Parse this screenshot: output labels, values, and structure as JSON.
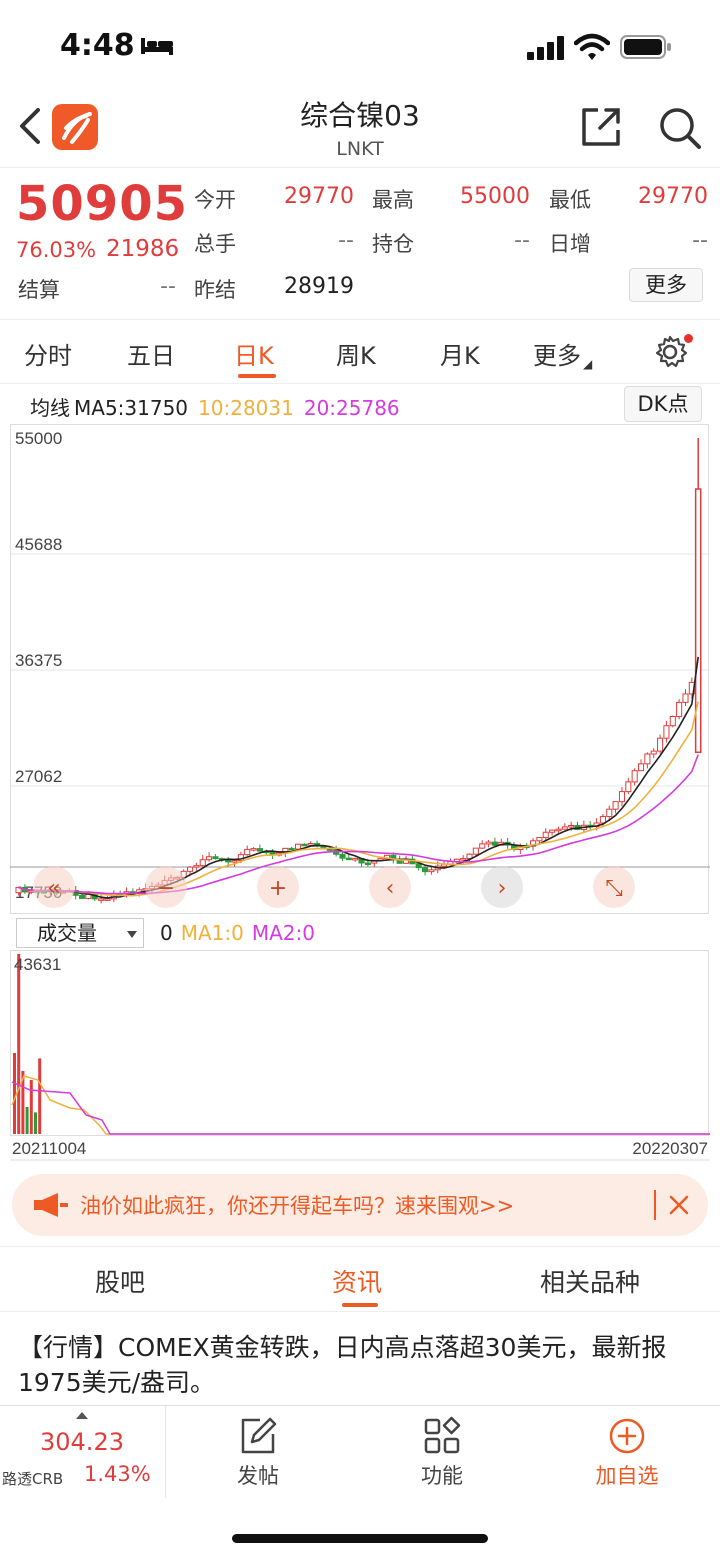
{
  "status_bar": {
    "time": "4:48"
  },
  "header": {
    "title": "综合镍03",
    "subtitle": "LNKT"
  },
  "quote": {
    "last_price": "50905",
    "change_pct": "76.03%",
    "change": "21986",
    "fields": {
      "open_label": "今开",
      "open": "29770",
      "high_label": "最高",
      "high": "55000",
      "low_label": "最低",
      "low": "29770",
      "volume_label": "总手",
      "volume": "--",
      "oi_label": "持仓",
      "oi": "--",
      "oi_change_label": "日增",
      "oi_change": "--",
      "settle_label": "结算",
      "settle": "--",
      "prev_settle_label": "昨结",
      "prev_settle": "28919"
    },
    "more_label": "更多"
  },
  "period_tabs": [
    "分时",
    "五日",
    "日K",
    "周K",
    "月K",
    "更多"
  ],
  "active_period": "日K",
  "ma_legend": {
    "label": "均线",
    "ma5": "MA5:31750",
    "ma10": "10:28031",
    "ma20": "20:25786",
    "dk_label": "DK点"
  },
  "colors": {
    "up": "#e03c3c",
    "down": "#2e9a3a",
    "accent": "#ee5a24",
    "ma5": "#222222",
    "ma10": "#f0b13c",
    "ma20": "#d43be0"
  },
  "chart_data": [
    {
      "type": "candlestick",
      "y_ticks": [
        "55000",
        "45688",
        "36375",
        "27062",
        "17750"
      ],
      "ylim": [
        17750,
        55000
      ],
      "last_candle": {
        "open": 29770,
        "high": 55000,
        "low": 29770,
        "close": 50905
      },
      "ma": {
        "ma5": 31750,
        "ma10": 28031,
        "ma20": 25786
      }
    },
    {
      "type": "bar",
      "title": "成交量",
      "y_max_label": "43631",
      "legend": {
        "value": "0",
        "ma1": "MA1:0",
        "ma2": "MA2:0"
      },
      "x_start": "20211004",
      "x_end": "20220307"
    }
  ],
  "volume": {
    "selector": "成交量",
    "value": "0",
    "ma1": "MA1:0",
    "ma2": "MA2:0",
    "max": "43631",
    "start_date": "20211004",
    "end_date": "20220307"
  },
  "banner": {
    "text": "油价如此疯狂，你还开得起车吗？速来围观>>"
  },
  "section_tabs": [
    "股吧",
    "资讯",
    "相关品种"
  ],
  "active_section": "资讯",
  "news": {
    "text": "【行情】COMEX黄金转跌，日内高点落超30美元，最新报1975美元/盎司。"
  },
  "bottom_bar": {
    "crb_value": "304.23",
    "crb_name": "路透CRB",
    "crb_pct": "1.43%",
    "post_label": "发帖",
    "function_label": "功能",
    "add_label": "加自选"
  }
}
